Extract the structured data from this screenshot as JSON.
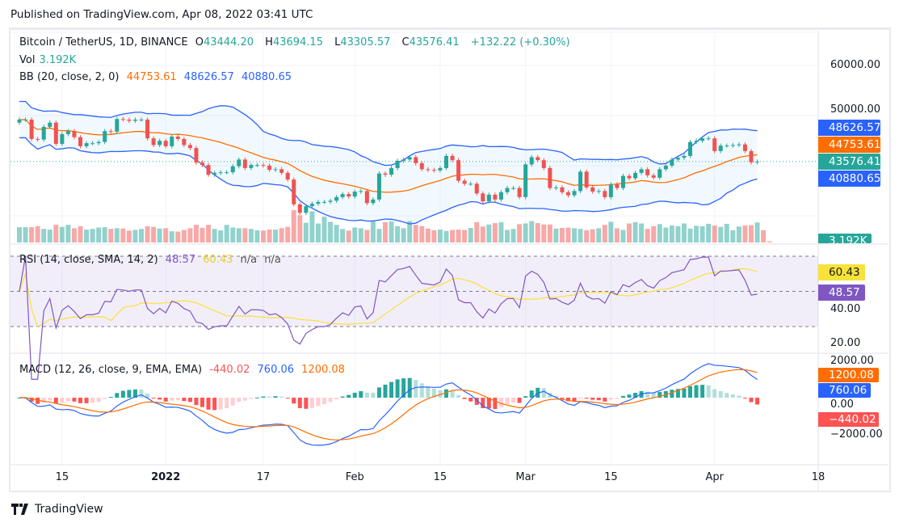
{
  "published": "Published on TradingView.com, Apr 08, 2022 03:41 UTC",
  "legend": {
    "symbol": "Bitcoin / TetherUS, 1D, BINANCE",
    "o_label": "O",
    "open": "43444.20",
    "h_label": "H",
    "high": "43694.15",
    "l_label": "L",
    "low": "43305.57",
    "c_label": "C",
    "close": "43576.41",
    "change": "+132.22 (+0.30%)",
    "vol_label": "Vol",
    "vol": "3.192K",
    "bb_label": "BB (20, close, 2, 0)",
    "bb_basis": "44753.61",
    "bb_upper": "48626.57",
    "bb_lower": "40880.65",
    "rsi_label": "RSI (14, close, SMA, 14, 2)",
    "rsi": "48.57",
    "rsi_ma": "60.43",
    "rsi_na1": "n/a",
    "rsi_na2": "n/a",
    "macd_label": "MACD (12, 26, close, 9, EMA, EMA)",
    "macd_hist": "-440.02",
    "macd": "760.06",
    "macd_signal": "1200.08"
  },
  "axis": {
    "price_ticks": [
      "60000.00",
      "50000.00"
    ],
    "rsi_ticks": [
      "40.00",
      "20.00"
    ],
    "macd_ticks": [
      "2000.00",
      "0.00",
      "−2000.00"
    ],
    "badges": {
      "bb_upper": "48626.57",
      "bb_basis": "44753.61",
      "close": "43576.41",
      "bb_lower": "40880.65",
      "vol": "3.192K",
      "rsi_ma": "60.43",
      "rsi": "48.57",
      "macd_signal": "1200.08",
      "macd": "760.06",
      "macd_hist": "−440.02"
    },
    "x_ticks": [
      {
        "label": "15",
        "i": 7
      },
      {
        "label": "2022",
        "i": 24,
        "bold": true
      },
      {
        "label": "17",
        "i": 40
      },
      {
        "label": "Feb",
        "i": 55
      },
      {
        "label": "15",
        "i": 69
      },
      {
        "label": "Mar",
        "i": 83
      },
      {
        "label": "15",
        "i": 97
      },
      {
        "label": "Apr",
        "i": 114
      },
      {
        "label": "18",
        "i": 131
      }
    ]
  },
  "colors": {
    "up": "#26a69a",
    "down": "#ef5350",
    "bb": "#2962ff",
    "basis": "#ff6d00",
    "rsi": "#7e57c2",
    "rsi_ma": "#fbe038",
    "macd_hist_down": "#ff5252"
  },
  "footer": {
    "brand": "TradingView"
  },
  "chart_data": {
    "type": "candlestick",
    "title": "Bitcoin / TetherUS, 1D, BINANCE",
    "x_start": "2021-12-08",
    "x_end": "2022-04-08",
    "ylim": [
      30000,
      62000
    ],
    "close": [
      50500,
      50500,
      47300,
      47200,
      49300,
      50000,
      46500,
      48100,
      48600,
      47600,
      46100,
      46600,
      46600,
      46800,
      48600,
      48500,
      50600,
      50500,
      50300,
      50500,
      50500,
      47400,
      46300,
      47000,
      46100,
      47700,
      47300,
      46300,
      45800,
      43400,
      43000,
      41400,
      41700,
      41800,
      41800,
      42800,
      43900,
      42500,
      43000,
      43000,
      42900,
      42200,
      42300,
      41700,
      40600,
      36500,
      35100,
      36200,
      36600,
      36900,
      36900,
      37100,
      37700,
      38200,
      37800,
      38600,
      38700,
      36700,
      37300,
      41600,
      41400,
      42500,
      43700,
      43900,
      44300,
      43300,
      42300,
      42200,
      42100,
      42500,
      44500,
      43800,
      40400,
      39900,
      39900,
      38300,
      37000,
      38100,
      37300,
      38500,
      39200,
      39200,
      37700,
      43100,
      44300,
      43800,
      42500,
      39200,
      39300,
      38500,
      38000,
      38700,
      41900,
      39300,
      38600,
      38700,
      37700,
      39800,
      39200,
      41200,
      40800,
      41700,
      42300,
      41300,
      40900,
      42300,
      42900,
      43900,
      44200,
      44500,
      46800,
      47000,
      47400,
      47400,
      45300,
      46200,
      46200,
      46300,
      46400,
      45300,
      43444,
      43576.41
    ],
    "volume_k": [
      45,
      45,
      45,
      48,
      40,
      38,
      52,
      46,
      52,
      42,
      48,
      38,
      40,
      44,
      45,
      40,
      42,
      41,
      35,
      37,
      40,
      48,
      46,
      41,
      42,
      33,
      32,
      37,
      42,
      52,
      43,
      52,
      40,
      36,
      52,
      44,
      42,
      42,
      40,
      36,
      35,
      38,
      38,
      42,
      46,
      95,
      80,
      58,
      92,
      56,
      76,
      61,
      52,
      40,
      35,
      44,
      42,
      37,
      62,
      40,
      60,
      62,
      48,
      42,
      63,
      52,
      48,
      41,
      36,
      38,
      34,
      37,
      38,
      37,
      43,
      60,
      47,
      53,
      57,
      60,
      37,
      40,
      54,
      56,
      63,
      57,
      53,
      53,
      41,
      43,
      44,
      42,
      40,
      36,
      39,
      42,
      52,
      61,
      42,
      37,
      56,
      60,
      56,
      40,
      48,
      54,
      44,
      50,
      48,
      56,
      41,
      49,
      48,
      55,
      50,
      46,
      55,
      36,
      47,
      50,
      51,
      59,
      36,
      3.192
    ]
  }
}
